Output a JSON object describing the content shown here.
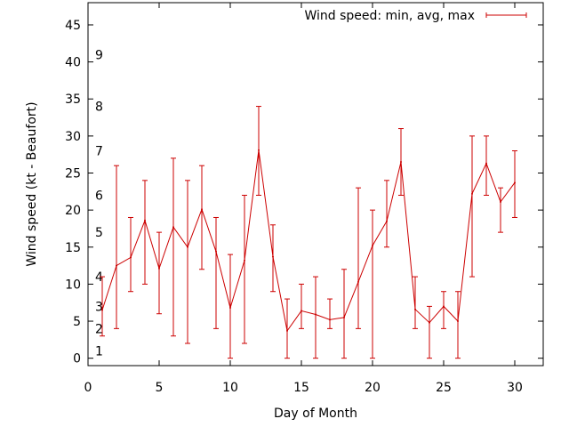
{
  "chart_data": {
    "type": "line",
    "title": "",
    "xlabel": "Day of Month",
    "ylabel": "Wind speed (kt - Beaufort)",
    "xlim": [
      0,
      32
    ],
    "ylim": [
      -1,
      48
    ],
    "xticks": [
      0,
      5,
      10,
      15,
      20,
      25,
      30
    ],
    "yticks": [
      0,
      5,
      10,
      15,
      20,
      25,
      30,
      35,
      40,
      45
    ],
    "grid": false,
    "legend_position": "top-right",
    "beaufort_labels": [
      {
        "label": "1",
        "y": 1
      },
      {
        "label": "2",
        "y": 4
      },
      {
        "label": "3",
        "y": 7
      },
      {
        "label": "4",
        "y": 11
      },
      {
        "label": "5",
        "y": 17
      },
      {
        "label": "6",
        "y": 22
      },
      {
        "label": "7",
        "y": 28
      },
      {
        "label": "8",
        "y": 34
      },
      {
        "label": "9",
        "y": 41
      }
    ],
    "series": [
      {
        "name": "Wind speed: min, avg, max",
        "color": "#cc0000",
        "points": [
          {
            "x": 1,
            "avg": 6.5,
            "min": 3,
            "max": 11
          },
          {
            "x": 2,
            "avg": 12.5,
            "min": 4,
            "max": 26
          },
          {
            "x": 3,
            "avg": 13.6,
            "min": 9,
            "max": 19
          },
          {
            "x": 4,
            "avg": 18.6,
            "min": 10,
            "max": 24
          },
          {
            "x": 5,
            "avg": 12.1,
            "min": 6,
            "max": 17
          },
          {
            "x": 6,
            "avg": 17.7,
            "min": 3,
            "max": 27
          },
          {
            "x": 7,
            "avg": 15,
            "min": 2,
            "max": 24
          },
          {
            "x": 8,
            "avg": 20.1,
            "min": 12,
            "max": 26
          },
          {
            "x": 9,
            "avg": 14.4,
            "min": 4,
            "max": 19
          },
          {
            "x": 10,
            "avg": 6.8,
            "min": 0,
            "max": 14
          },
          {
            "x": 11,
            "avg": 13.2,
            "min": 2,
            "max": 22
          },
          {
            "x": 12,
            "avg": 28.1,
            "min": 22,
            "max": 34
          },
          {
            "x": 13,
            "avg": 13.7,
            "min": 9,
            "max": 18
          },
          {
            "x": 14,
            "avg": 3.7,
            "min": 0,
            "max": 8
          },
          {
            "x": 15,
            "avg": 6.4,
            "min": 4,
            "max": 10
          },
          {
            "x": 16,
            "avg": 5.9,
            "min": 0,
            "max": 11
          },
          {
            "x": 17,
            "avg": 5.2,
            "min": 4,
            "max": 8
          },
          {
            "x": 18,
            "avg": 5.5,
            "min": 0,
            "max": 12
          },
          {
            "x": 19,
            "avg": 10.3,
            "min": 4,
            "max": 23
          },
          {
            "x": 20,
            "avg": 15.2,
            "min": 0,
            "max": 20
          },
          {
            "x": 21,
            "avg": 18.5,
            "min": 15,
            "max": 24
          },
          {
            "x": 22,
            "avg": 26.5,
            "min": 22,
            "max": 31
          },
          {
            "x": 23,
            "avg": 6.6,
            "min": 4,
            "max": 11
          },
          {
            "x": 24,
            "avg": 4.8,
            "min": 0,
            "max": 7
          },
          {
            "x": 25,
            "avg": 7,
            "min": 4,
            "max": 9
          },
          {
            "x": 26,
            "avg": 5,
            "min": 0,
            "max": 9
          },
          {
            "x": 27,
            "avg": 22.2,
            "min": 11,
            "max": 30
          },
          {
            "x": 28,
            "avg": 26.3,
            "min": 22,
            "max": 30
          },
          {
            "x": 29,
            "avg": 21.1,
            "min": 17,
            "max": 23
          },
          {
            "x": 30,
            "avg": 23.7,
            "min": 19,
            "max": 28
          }
        ]
      }
    ]
  }
}
